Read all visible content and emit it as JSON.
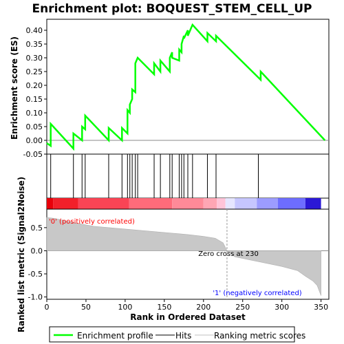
{
  "chart_data": {
    "title": "Enrichment plot: BOQUEST_STEM_CELL_UP",
    "type": "line",
    "top_panel": {
      "ylabel": "Enrichment score (ES)",
      "ylim": [
        -0.05,
        0.44
      ],
      "yticks": [
        -0.05,
        0.0,
        0.05,
        0.1,
        0.15,
        0.2,
        0.25,
        0.3,
        0.35,
        0.4
      ],
      "ytick_labels": [
        "-0.05",
        "0.00",
        "0.05",
        "0.10",
        "0.15",
        "0.20",
        "0.25",
        "0.30",
        "0.35",
        "0.40"
      ],
      "series": [
        {
          "name": "Enrichment profile",
          "color": "#00ff00",
          "x": [
            0,
            5,
            5,
            34,
            34,
            45,
            45,
            49,
            49,
            79,
            79,
            96,
            96,
            103,
            103,
            106,
            106,
            109,
            109,
            113,
            113,
            116,
            116,
            137,
            137,
            145,
            145,
            157,
            157,
            160,
            160,
            169,
            169,
            172,
            172,
            175,
            175,
            180,
            180,
            186,
            186,
            205,
            205,
            216,
            216,
            273,
            273,
            355
          ],
          "y": [
            -0.01,
            -0.02,
            0.06,
            -0.03,
            0.025,
            0.0,
            0.05,
            0.04,
            0.09,
            0.0,
            0.045,
            0.0,
            0.045,
            0.025,
            0.11,
            0.1,
            0.13,
            0.15,
            0.185,
            0.175,
            0.28,
            0.3,
            0.3,
            0.24,
            0.28,
            0.25,
            0.29,
            0.25,
            0.3,
            0.32,
            0.3,
            0.29,
            0.33,
            0.32,
            0.35,
            0.38,
            0.37,
            0.4,
            0.38,
            0.42,
            0.42,
            0.36,
            0.39,
            0.36,
            0.38,
            0.22,
            0.25,
            0.0
          ]
        }
      ]
    },
    "hits_panel": {
      "legend_label": "Hits",
      "hit_positions": [
        5,
        34,
        45,
        49,
        79,
        96,
        103,
        106,
        109,
        113,
        116,
        137,
        145,
        157,
        160,
        169,
        172,
        175,
        180,
        186,
        205,
        216,
        270
      ]
    },
    "ranked_panel": {
      "ylabel": "Ranked list metric (Signal2Noise)",
      "xlabel": "Rank in Ordered Dataset",
      "ylim": [
        -1.05,
        0.9
      ],
      "yticks": [
        -1.0,
        -0.5,
        0.0,
        0.5
      ],
      "ytick_labels": [
        "-1.0",
        "-0.5",
        "0.0",
        "0.5"
      ],
      "xlim": [
        0,
        360
      ],
      "xticks": [
        0,
        50,
        100,
        150,
        200,
        250,
        300,
        350
      ],
      "xtick_labels": [
        "0",
        "50",
        "100",
        "150",
        "200",
        "250",
        "300",
        "350"
      ],
      "legend_label": "Ranking metric scores",
      "metric_x": [
        0,
        10,
        20,
        40,
        60,
        80,
        100,
        120,
        140,
        160,
        180,
        200,
        215,
        225,
        230,
        240,
        260,
        280,
        300,
        320,
        330,
        340,
        345,
        350
      ],
      "metric_y": [
        0.72,
        0.7,
        0.66,
        0.59,
        0.53,
        0.5,
        0.47,
        0.44,
        0.41,
        0.38,
        0.35,
        0.31,
        0.27,
        0.17,
        0.0,
        -0.13,
        -0.2,
        -0.27,
        -0.34,
        -0.43,
        -0.55,
        -0.66,
        -0.75,
        -0.97
      ],
      "zero_cross_label": "Zero cross at 230",
      "zero_cross": 230,
      "pos_label": "'0' (positively correlated)",
      "neg_label": "'1' (negatively correlated)",
      "pos_color": "#ff0000",
      "neg_color": "#0000ff"
    },
    "colorbar": {
      "segments": [
        {
          "to": 8,
          "color": "#e8000a"
        },
        {
          "to": 40,
          "color": "#f2202a"
        },
        {
          "to": 105,
          "color": "#fa4455"
        },
        {
          "to": 160,
          "color": "#ff6b7a"
        },
        {
          "to": 200,
          "color": "#ff8a98"
        },
        {
          "to": 217,
          "color": "#ffa6b4"
        },
        {
          "to": 228,
          "color": "#ffc4d8"
        },
        {
          "to": 240,
          "color": "#e6e6ff"
        },
        {
          "to": 268,
          "color": "#c6c6ff"
        },
        {
          "to": 295,
          "color": "#9c9cff"
        },
        {
          "to": 330,
          "color": "#6d6dff"
        },
        {
          "to": 350,
          "color": "#2b18d6"
        }
      ]
    },
    "legend": {
      "items": [
        {
          "label": "Enrichment profile",
          "color": "#00ff00"
        },
        {
          "label": "Hits",
          "color": "#000000"
        },
        {
          "label": "Ranking metric scores",
          "color": "#c0c0c0"
        }
      ],
      "placement": "bottom"
    }
  }
}
